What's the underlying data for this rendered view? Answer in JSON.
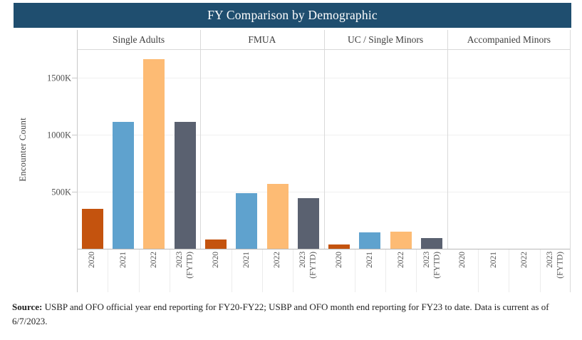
{
  "title": "FY Comparison by Demographic",
  "colors": {
    "banner": "#1F4E6F",
    "grid_line": "#f0f0f0",
    "separator": "#d9d9d9",
    "axis_line": "#b8b8b8",
    "side_line": "#c9c9c9",
    "cell_tick": "#ececec"
  },
  "source_note": {
    "label": "Source:",
    "text": " USBP and OFO official year end reporting for FY20-FY22; USBP and OFO month end reporting for FY23 to date. Data is current as of 6/7/2023."
  },
  "chart_data": {
    "type": "bar",
    "title": "FY Comparison by Demographic",
    "ylabel": "Encounter Count",
    "unit": "encounters (thousands)",
    "ylim_K": [
      0,
      1745
    ],
    "grid": "horizontal",
    "y_ticks": [
      {
        "value_K": 500,
        "label": "500K"
      },
      {
        "value_K": 1000,
        "label": "1000K"
      },
      {
        "value_K": 1500,
        "label": "1500K"
      }
    ],
    "categories": [
      "2020",
      "2021",
      "2022",
      "2023 (FYTD)"
    ],
    "bar_colors": [
      "#C4530E",
      "#5FA2CE",
      "#FDBB74",
      "#5A6170"
    ],
    "panels": [
      {
        "label": "Single Adults",
        "values_K": [
          350,
          1110,
          1660,
          1110
        ]
      },
      {
        "label": "FMUA",
        "values_K": [
          80,
          485,
          570,
          445
        ]
      },
      {
        "label": "UC / Single Minors",
        "values_K": [
          40,
          145,
          150,
          95
        ]
      },
      {
        "label": "Accompanied Minors",
        "values_K": [
          0,
          0,
          0,
          0
        ]
      }
    ]
  }
}
